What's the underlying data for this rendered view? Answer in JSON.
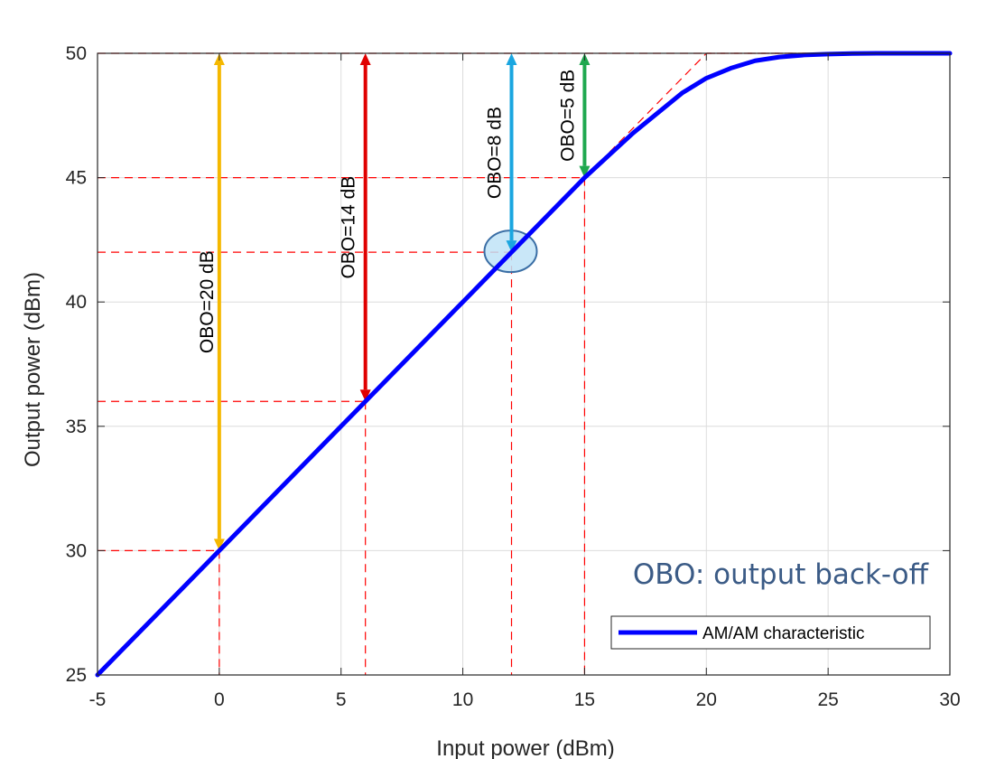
{
  "chart_data": {
    "type": "line",
    "title": "",
    "xlabel": "Input power (dBm)",
    "ylabel": "Output power (dBm)",
    "xlim": [
      -5,
      30
    ],
    "ylim": [
      25,
      50
    ],
    "xticks": [
      -5,
      0,
      5,
      10,
      15,
      20,
      25,
      30
    ],
    "yticks": [
      25,
      30,
      35,
      40,
      45,
      50
    ],
    "xtick_labels": [
      "-5",
      "0",
      "5",
      "10",
      "15",
      "20",
      "25",
      "30"
    ],
    "ytick_labels": [
      "25",
      "30",
      "35",
      "40",
      "45",
      "50"
    ],
    "grid": true,
    "legend": {
      "placement": "bottom-right",
      "entries": [
        "AM/AM characteristic"
      ]
    },
    "series": [
      {
        "name": "AM/AM characteristic",
        "color": "#0000ff",
        "x": [
          -5,
          0,
          5,
          10,
          12,
          14,
          15,
          16,
          17,
          18,
          19,
          20,
          21,
          22,
          23,
          24,
          25,
          26,
          27,
          28,
          29,
          30
        ],
        "y": [
          25,
          30,
          35,
          40,
          42,
          44,
          45,
          45.9,
          46.8,
          47.6,
          48.4,
          49.0,
          49.4,
          49.7,
          49.85,
          49.93,
          49.97,
          49.99,
          50,
          50,
          50,
          50
        ]
      }
    ],
    "ideal_linear": {
      "color": "#ff0000",
      "x": [
        -5,
        20,
        30
      ],
      "y": [
        25,
        50,
        50
      ]
    },
    "operating_points": [
      {
        "x": 0,
        "y": 30
      },
      {
        "x": 6,
        "y": 36
      },
      {
        "x": 12,
        "y": 42
      },
      {
        "x": 15,
        "y": 45
      }
    ],
    "saturation_level": 50,
    "back_off_arrows": [
      {
        "x": 0,
        "y_from": 30,
        "y_to": 50,
        "label": "OBO=20 dB",
        "color": "#f5b800"
      },
      {
        "x": 6,
        "y_from": 36,
        "y_to": 50,
        "label": "OBO=14 dB",
        "color": "#e00000"
      },
      {
        "x": 12,
        "y_from": 42,
        "y_to": 50,
        "label": "OBO=8 dB",
        "color": "#1aa6e0"
      },
      {
        "x": 15,
        "y_from": 45,
        "y_to": 50,
        "label": "OBO=5 dB",
        "color": "#1fa84f"
      }
    ],
    "highlight": {
      "x": 12,
      "y": 42,
      "fill": "#bfe3f7",
      "stroke": "#3a6ea5"
    },
    "note": {
      "text": "OBO: output back-off",
      "color": "#3b5b86"
    }
  }
}
